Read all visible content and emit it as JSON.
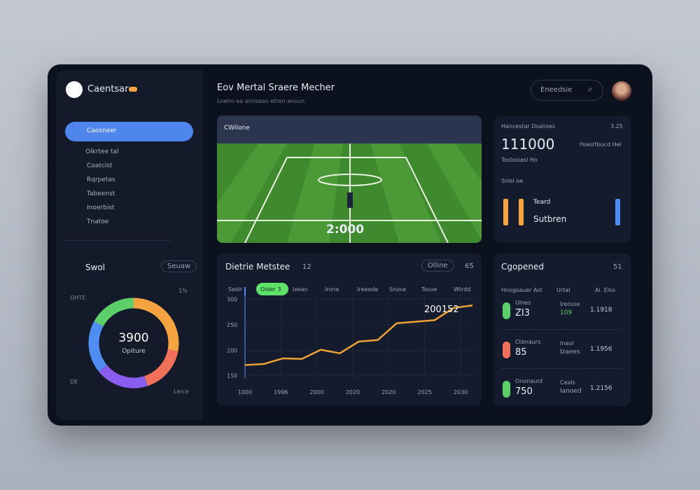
{
  "sidebar": {
    "brand": "Caentsar",
    "nav": [
      "Caosneer",
      "Oikrtee tal",
      "Coatcist",
      "Rqrpetas",
      "Tabeenst",
      "Inoerbist",
      "Tnatoe"
    ],
    "widget": {
      "title": "Swol",
      "button": "Seuaw",
      "center_value": "3900",
      "center_label": "Opiture",
      "corner_labels": [
        "OHTE",
        "1%",
        "DE",
        "Lerce"
      ],
      "segments": [
        {
          "color": "#f4a340",
          "value": 28
        },
        {
          "color": "#f0705a",
          "value": 17
        },
        {
          "color": "#8a5cf0",
          "value": 19
        },
        {
          "color": "#4f8df2",
          "value": 19
        },
        {
          "color": "#5ccf6a",
          "value": 17
        }
      ]
    }
  },
  "header": {
    "title": "Eov Mertal Sraere Mecher",
    "subtitle": "Lnelro ea arnlsean etren anoun",
    "search": "Eneedsie"
  },
  "video": {
    "badge": "CWilone",
    "score": "2:000"
  },
  "stats": {
    "label": "Hancestar Dsalioes",
    "corner": "3.25",
    "value": "111000",
    "note": "Tostosiasl Ho",
    "side": "Hoeirtbucd Hel",
    "sub": "Snlsl oe",
    "bar_title": "Teard",
    "bar_value": "Sutbren",
    "bars": [
      {
        "color": "#f4a340",
        "value": 100
      },
      {
        "color": "#f4a340",
        "value": 100
      },
      {
        "color": "#4f8df2",
        "value": 100
      }
    ]
  },
  "chart": {
    "title": "Dietrie Metstee",
    "badge": "12",
    "button": "Olline",
    "button2": "65",
    "legend": [
      "Sedir",
      "Oider 3",
      "Ixean",
      "Irone",
      "Ireeede",
      "Snose",
      "Tosve",
      "Wtrdd"
    ],
    "value_label": "200152",
    "yticks": [
      300,
      250,
      200,
      150
    ],
    "ylim": [
      140,
      320
    ],
    "x_labels": [
      "1000",
      "1996",
      "2000",
      "2020",
      "2020",
      "2025",
      "2030"
    ],
    "color": "#f0a236",
    "values": [
      171,
      173,
      184,
      183,
      201,
      194,
      217,
      220,
      253,
      256,
      259,
      283,
      288
    ]
  },
  "list": {
    "title": "Cgopened",
    "corner": "51",
    "headers": [
      "Hnogsauer Ast",
      "Urtal",
      "Ai. Elso"
    ],
    "rows": [
      [
        "Ulnes",
        "ZI3",
        "Ireosse",
        "109",
        "1.1918"
      ],
      [
        "Ctenaurs",
        "85",
        "Inaol",
        "Izaees",
        "1.1956"
      ],
      [
        "Ononaunt",
        "750",
        "Ceals",
        "Ianoed",
        "1.2156"
      ]
    ]
  }
}
